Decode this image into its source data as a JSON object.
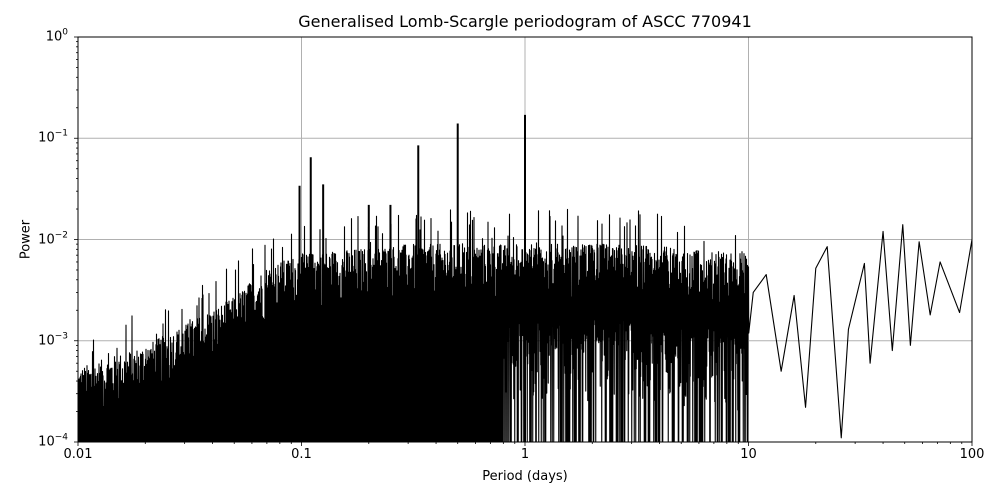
{
  "chart_data": {
    "type": "line",
    "title": "Generalised Lomb-Scargle periodogram of ASCC 770941",
    "xlabel": "Period (days)",
    "ylabel": "Power",
    "xscale": "log",
    "yscale": "log",
    "xlim": [
      0.01,
      100
    ],
    "ylim": [
      0.0001,
      1
    ],
    "grid": true,
    "legend": null,
    "xticks": [
      "0.01",
      "0.1",
      "1",
      "10",
      "100"
    ],
    "yticks": [
      {
        "base": "10",
        "exp": "0"
      },
      {
        "base": "10",
        "exp": "−1"
      },
      {
        "base": "10",
        "exp": "−2"
      },
      {
        "base": "10",
        "exp": "−3"
      },
      {
        "base": "10",
        "exp": "−4"
      }
    ],
    "series": [
      {
        "name": "Power",
        "color": "#000000",
        "notable_peaks": [
          {
            "period": 1.0,
            "power": 0.17
          },
          {
            "period": 0.5,
            "power": 0.14
          },
          {
            "period": 0.333,
            "power": 0.085
          },
          {
            "period": 0.11,
            "power": 0.065
          },
          {
            "period": 0.098,
            "power": 0.034
          },
          {
            "period": 0.125,
            "power": 0.035
          },
          {
            "period": 0.2,
            "power": 0.022
          },
          {
            "period": 0.25,
            "power": 0.022
          },
          {
            "period": 9.5,
            "power": 0.013
          },
          {
            "period": 40.0,
            "power": 0.012
          },
          {
            "period": 49.0,
            "power": 0.014
          },
          {
            "period": 58.0,
            "power": 0.0095
          },
          {
            "period": 23.0,
            "power": 0.0085
          },
          {
            "period": 100.0,
            "power": 0.01
          }
        ],
        "envelope": [
          {
            "period": 0.01,
            "power": 0.0003
          },
          {
            "period": 0.02,
            "power": 0.0005
          },
          {
            "period": 0.03,
            "power": 0.0008
          },
          {
            "period": 0.05,
            "power": 0.0015
          },
          {
            "period": 0.07,
            "power": 0.003
          },
          {
            "period": 0.1,
            "power": 0.004
          },
          {
            "period": 0.3,
            "power": 0.005
          },
          {
            "period": 1.0,
            "power": 0.005
          },
          {
            "period": 3.0,
            "power": 0.005
          },
          {
            "period": 10.0,
            "power": 0.004
          }
        ],
        "low_period_tail": [
          {
            "period": 10.5,
            "power": 0.003
          },
          {
            "period": 12,
            "power": 0.0045
          },
          {
            "period": 14,
            "power": 0.0005
          },
          {
            "period": 16,
            "power": 0.0028
          },
          {
            "period": 18,
            "power": 0.00022
          },
          {
            "period": 20,
            "power": 0.0052
          },
          {
            "period": 22.5,
            "power": 0.0085
          },
          {
            "period": 26,
            "power": 0.00011
          },
          {
            "period": 28,
            "power": 0.0013
          },
          {
            "period": 33,
            "power": 0.0058
          },
          {
            "period": 35,
            "power": 0.0006
          },
          {
            "period": 40,
            "power": 0.012
          },
          {
            "period": 44,
            "power": 0.0008
          },
          {
            "period": 49,
            "power": 0.014
          },
          {
            "period": 53,
            "power": 0.0009
          },
          {
            "period": 58,
            "power": 0.0095
          },
          {
            "period": 65,
            "power": 0.0018
          },
          {
            "period": 72,
            "power": 0.006
          },
          {
            "period": 88,
            "power": 0.0019
          },
          {
            "period": 100,
            "power": 0.01
          }
        ]
      }
    ]
  }
}
